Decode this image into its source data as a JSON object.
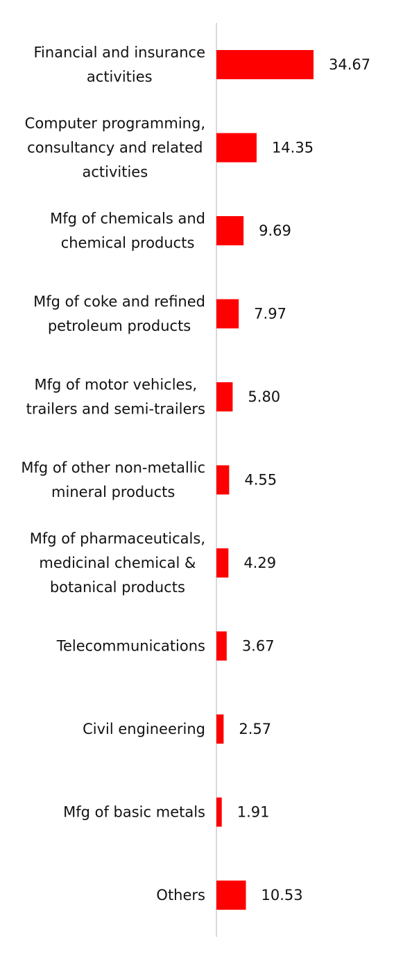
{
  "chart_data": {
    "type": "bar",
    "orientation": "horizontal",
    "categories": [
      [
        "Financial and insurance",
        "activities"
      ],
      [
        "Computer programming,",
        "consultancy and related",
        "activities"
      ],
      [
        "Mfg of chemicals and",
        "chemical products"
      ],
      [
        "Mfg of coke and refined",
        "petroleum products"
      ],
      [
        "Mfg of motor vehicles,",
        "trailers and semi-trailers"
      ],
      [
        "Mfg of other non-metallic",
        "mineral products"
      ],
      [
        "Mfg of pharmaceuticals,",
        "medicinal chemical &",
        "botanical products"
      ],
      [
        "Telecommunications"
      ],
      [
        "Civil engineering"
      ],
      [
        "Mfg of basic metals"
      ],
      [
        "Others"
      ]
    ],
    "values": [
      34.67,
      14.35,
      9.69,
      7.97,
      5.8,
      4.55,
      4.29,
      3.67,
      2.57,
      1.91,
      10.53
    ],
    "value_labels": [
      "34.67",
      "14.35",
      "9.69",
      "7.97",
      "5.80",
      "4.55",
      "4.29",
      "3.67",
      "2.57",
      "1.91",
      "10.53"
    ],
    "bar_color": "#ff0000",
    "axis_color": "#d9d9d9",
    "text_color": "#111111",
    "xlim": [
      0,
      100
    ],
    "grid": false,
    "legend": "none"
  }
}
